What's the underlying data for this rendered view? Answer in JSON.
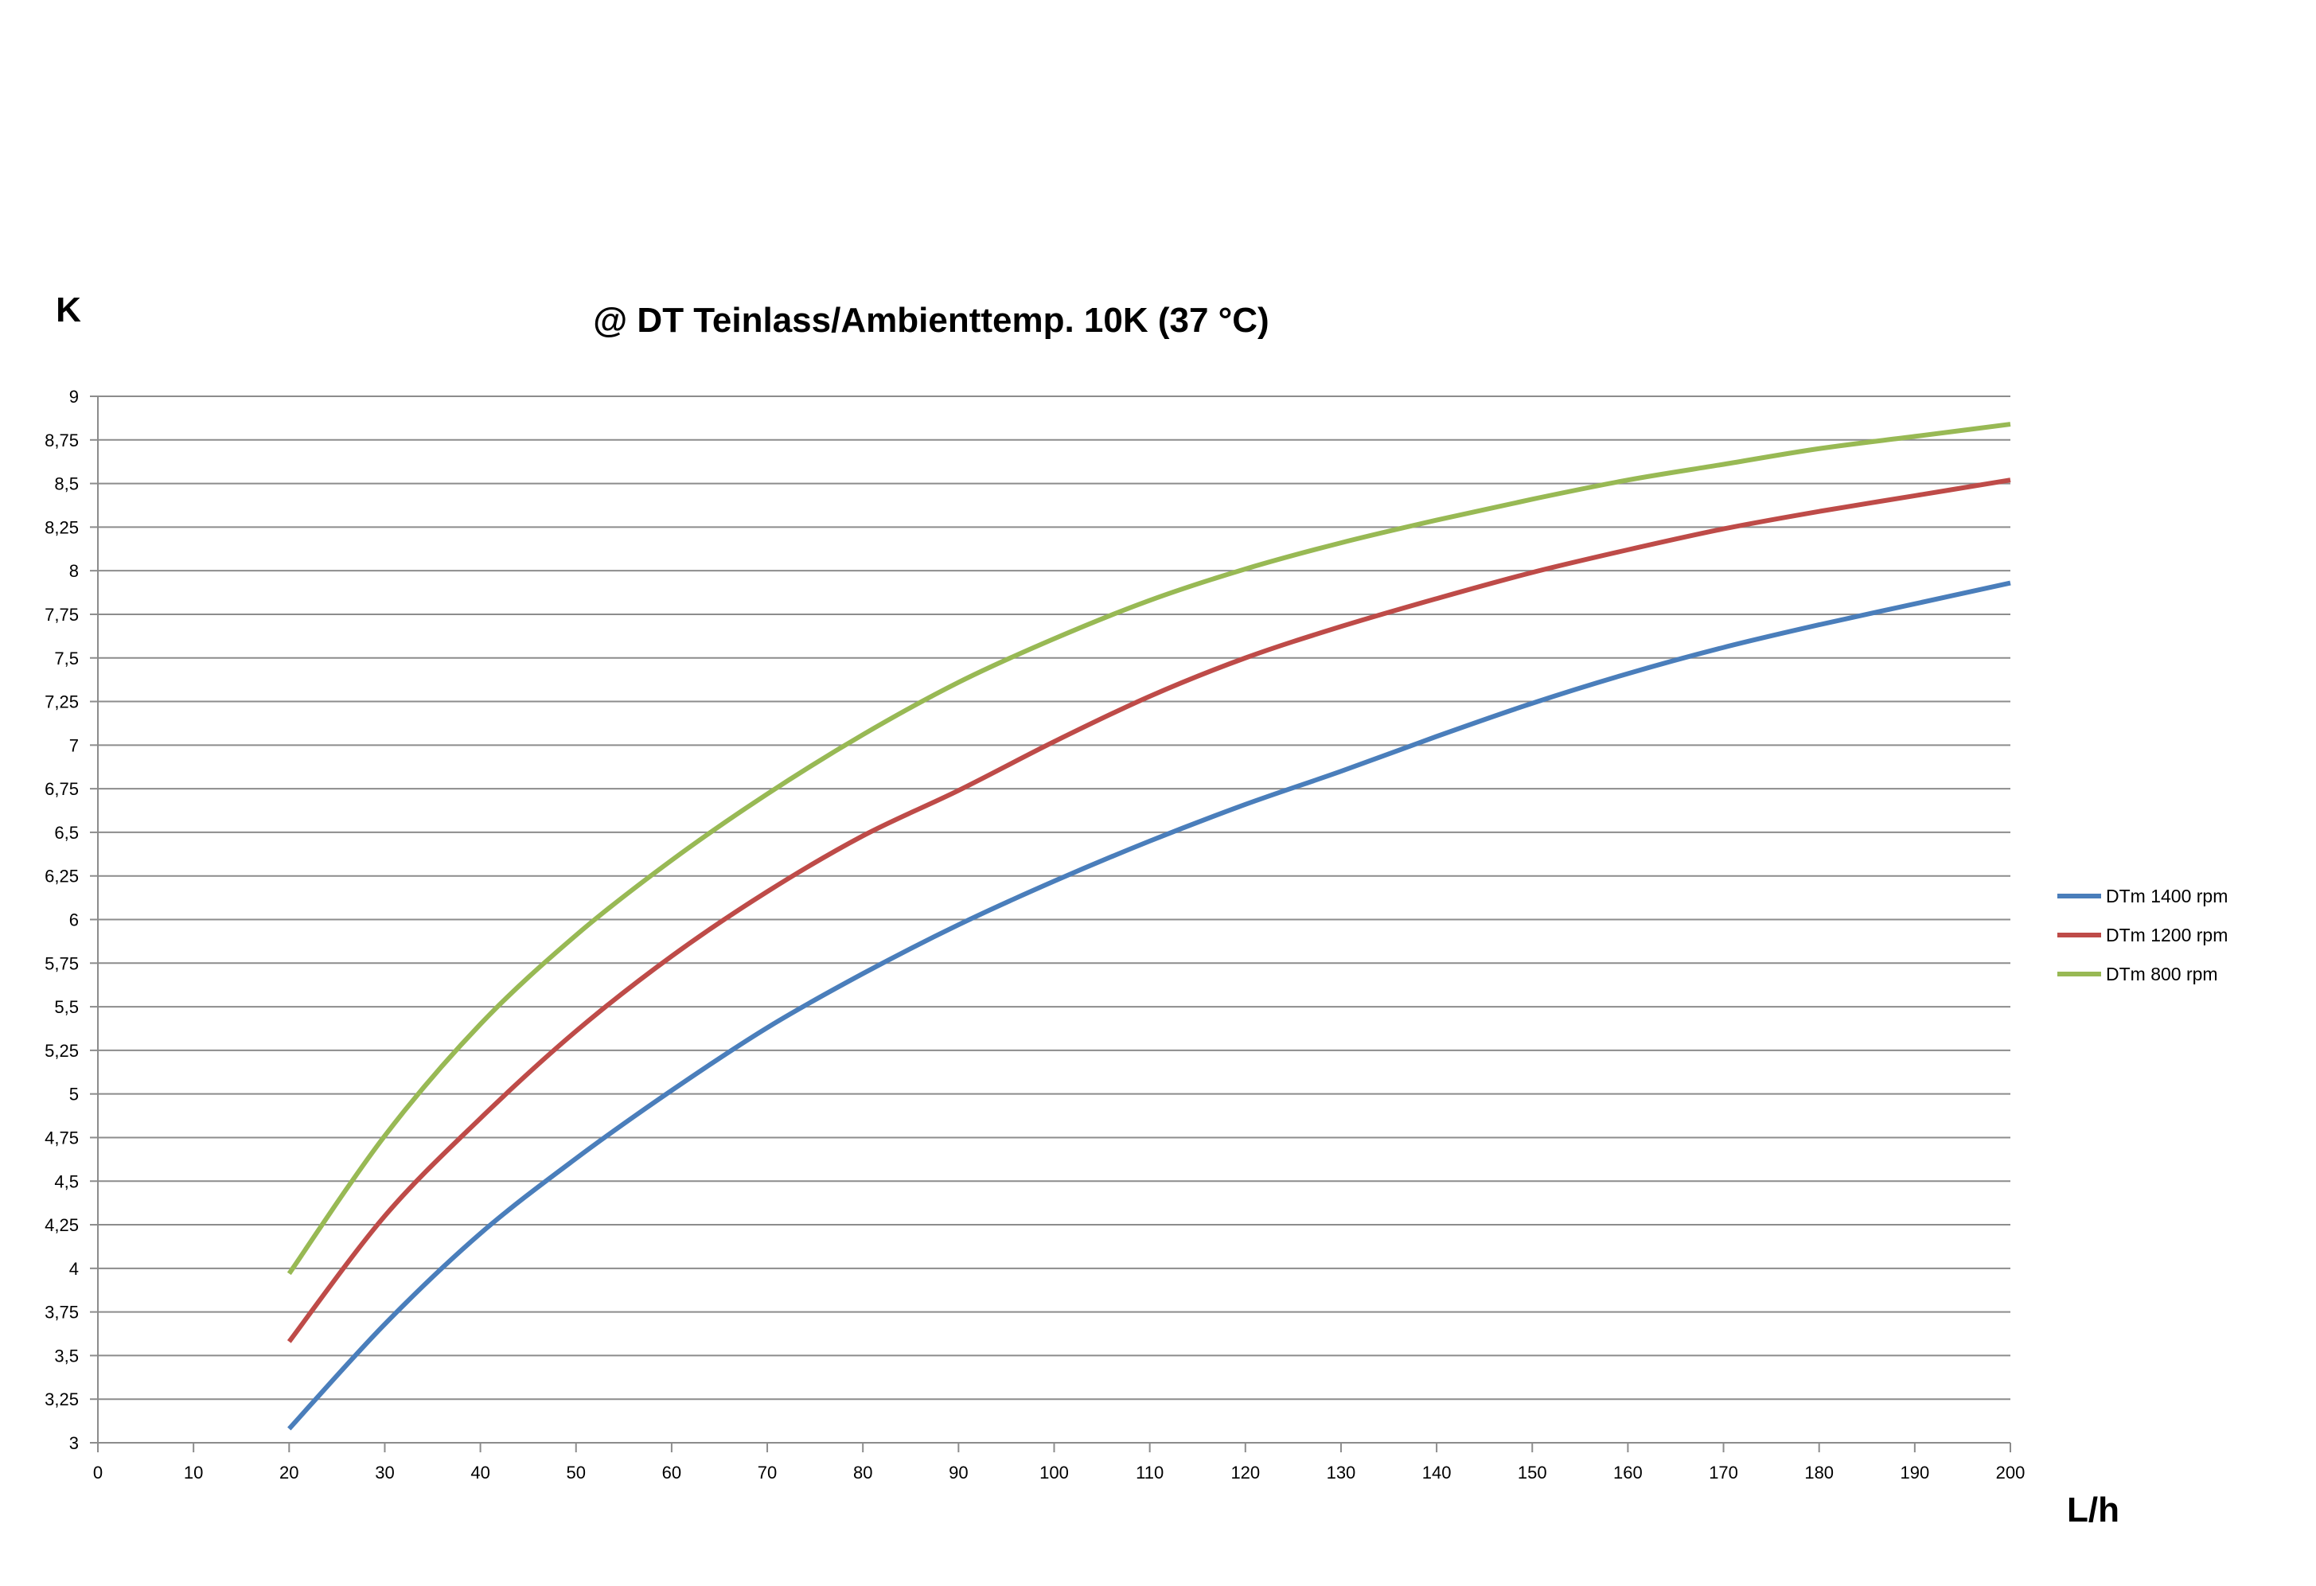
{
  "chart_data": {
    "type": "line",
    "title": "@ DT Teinlass/Ambienttemp. 10K (37 °C)",
    "ylabel": "K",
    "xlabel": "L/h",
    "xlim": [
      0,
      200
    ],
    "ylim": [
      3,
      9
    ],
    "x_ticks": [
      "0",
      "10",
      "20",
      "30",
      "40",
      "50",
      "60",
      "70",
      "80",
      "90",
      "100",
      "110",
      "120",
      "130",
      "140",
      "150",
      "160",
      "170",
      "180",
      "190",
      "200"
    ],
    "y_ticks": [
      "3",
      "3,25",
      "3,5",
      "3,75",
      "4",
      "4,25",
      "4,5",
      "4,75",
      "5",
      "5,25",
      "5,5",
      "5,75",
      "6",
      "6,25",
      "6,5",
      "6,75",
      "7",
      "7,25",
      "7,5",
      "7,75",
      "8",
      "8,25",
      "8,5",
      "8,75",
      "9"
    ],
    "grid": true,
    "legend_position": "right",
    "x": [
      20,
      30,
      40,
      50,
      60,
      70,
      80,
      90,
      100,
      110,
      120,
      130,
      140,
      150,
      160,
      170,
      180,
      190,
      200
    ],
    "series": [
      {
        "name": "DTm 1400 rpm",
        "color": "#4a7ebb",
        "values": [
          3.08,
          3.68,
          4.2,
          4.63,
          5.02,
          5.38,
          5.69,
          5.97,
          6.22,
          6.45,
          6.66,
          6.85,
          7.05,
          7.24,
          7.41,
          7.56,
          7.69,
          7.81,
          7.93
        ]
      },
      {
        "name": "DTm 1200 rpm",
        "color": "#be4b48",
        "values": [
          3.58,
          4.3,
          4.86,
          5.36,
          5.79,
          6.16,
          6.48,
          6.74,
          7.02,
          7.28,
          7.5,
          7.68,
          7.84,
          7.99,
          8.12,
          8.24,
          8.34,
          8.43,
          8.52
        ]
      },
      {
        "name": "DTm 800 rpm",
        "color": "#98b954",
        "values": [
          3.97,
          4.76,
          5.4,
          5.91,
          6.34,
          6.72,
          7.06,
          7.36,
          7.61,
          7.83,
          8.01,
          8.16,
          8.29,
          8.41,
          8.52,
          8.61,
          8.7,
          8.77,
          8.84
        ]
      }
    ]
  }
}
